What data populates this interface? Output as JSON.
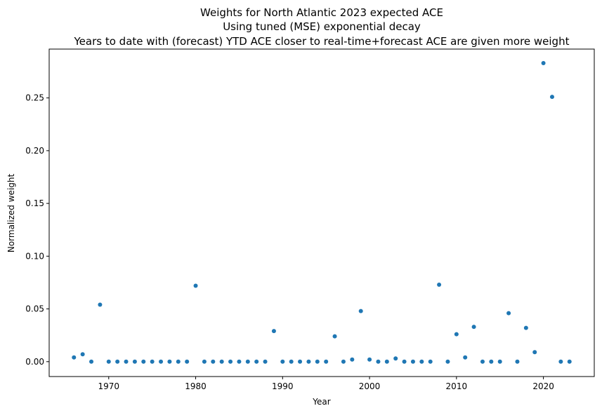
{
  "chart_data": {
    "type": "scatter",
    "title_lines": [
      "Weights for North Atlantic 2023 expected ACE",
      "Using tuned (MSE) exponential decay",
      "Years to date with (forecast) YTD ACE closer to real-time+forecast ACE are given more weight"
    ],
    "xlabel": "Year",
    "ylabel": "Normalized weight",
    "xlim": [
      1963.15,
      2025.85
    ],
    "ylim": [
      -0.0141,
      0.2963
    ],
    "x_ticks": [
      1970,
      1980,
      1990,
      2000,
      2010,
      2020
    ],
    "x_tick_labels": [
      "1970",
      "1980",
      "1990",
      "2000",
      "2010",
      "2020"
    ],
    "y_ticks": [
      0.0,
      0.05,
      0.1,
      0.15,
      0.2,
      0.25
    ],
    "y_tick_labels": [
      "0.00",
      "0.05",
      "0.10",
      "0.15",
      "0.20",
      "0.25"
    ],
    "grid": false,
    "marker_color": "#1f77b4",
    "series": [
      {
        "x": [
          1966,
          1967,
          1968,
          1969,
          1970,
          1971,
          1972,
          1973,
          1974,
          1975,
          1976,
          1977,
          1978,
          1979,
          1980,
          1981,
          1982,
          1983,
          1984,
          1985,
          1986,
          1987,
          1988,
          1989,
          1990,
          1991,
          1992,
          1993,
          1994,
          1995,
          1996,
          1997,
          1998,
          1999,
          2000,
          2001,
          2002,
          2003,
          2004,
          2005,
          2006,
          2007,
          2008,
          2009,
          2010,
          2011,
          2012,
          2013,
          2014,
          2015,
          2016,
          2017,
          2018,
          2019,
          2020,
          2021,
          2022,
          2023
        ],
        "y": [
          0.004,
          0.007,
          0.0,
          0.054,
          0.0,
          0.0,
          0.0,
          0.0,
          0.0,
          0.0,
          0.0,
          0.0,
          0.0,
          0.0,
          0.072,
          0.0,
          0.0,
          0.0,
          0.0,
          0.0,
          0.0,
          0.0,
          0.0,
          0.029,
          0.0,
          0.0,
          0.0,
          0.0,
          0.0,
          0.0,
          0.024,
          0.0,
          0.002,
          0.048,
          0.002,
          0.0,
          0.0,
          0.003,
          0.0,
          0.0,
          0.0,
          0.0,
          0.073,
          0.0,
          0.026,
          0.004,
          0.033,
          0.0,
          0.0,
          0.0,
          0.046,
          0.0,
          0.032,
          0.009,
          0.283,
          0.251,
          0.0,
          0.0
        ]
      }
    ]
  }
}
